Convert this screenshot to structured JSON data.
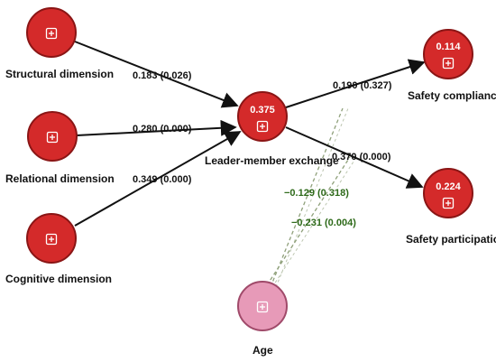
{
  "colors": {
    "node_fill": "#d42a2a",
    "node_stroke": "#8a1515",
    "moderator_fill": "#e79ab8",
    "moderator_stroke": "#a04a6a",
    "arrow": "#111111",
    "moderator_line": "#8fa07a",
    "moderator_text": "#2e6a1a"
  },
  "icons": {
    "node_expand": "plus-square-icon"
  },
  "nodes": {
    "structural": {
      "label": "Structural dimension"
    },
    "relational": {
      "label": "Relational dimension"
    },
    "cognitive": {
      "label": "Cognitive dimension"
    },
    "lmx": {
      "label": "Leader-member exchange",
      "r2": "0.375"
    },
    "compliance": {
      "label": "Safety compliance",
      "r2": "0.114"
    },
    "participation": {
      "label": "Safety participation",
      "r2": "0.224"
    },
    "age": {
      "label": "Age"
    }
  },
  "paths": {
    "structural_lmx": "0.183 (0.026)",
    "relational_lmx": "0.280 (0.000)",
    "cognitive_lmx": "0.349 (0.000)",
    "lmx_compliance": "0.190 (0.327)",
    "lmx_participation": "0.370 (0.000)",
    "age_compliance": "−0.129 (0.318)",
    "age_participation": "−0.231 (0.004)"
  }
}
